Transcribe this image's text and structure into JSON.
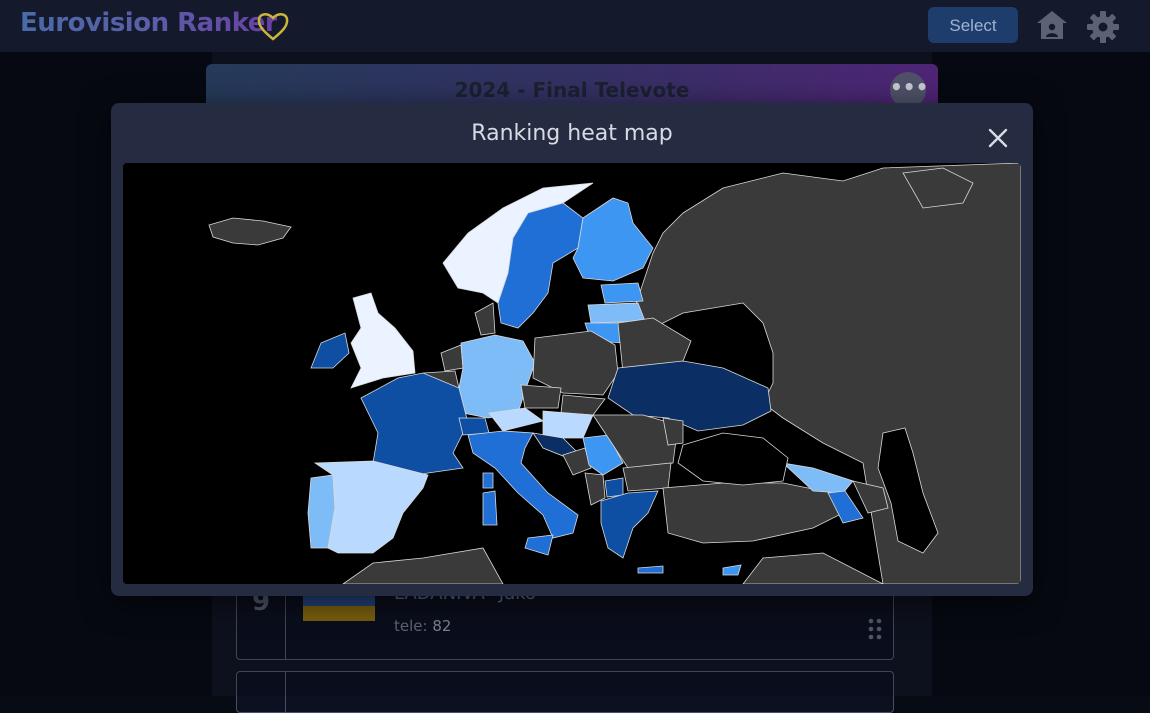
{
  "header": {
    "app_title": "Eurovision Ranker",
    "select_label": "Select",
    "icons": [
      "heart-icon",
      "home-icon",
      "gear-icon"
    ]
  },
  "ranking_list": {
    "title": "2024 - Final Televote",
    "menu_label": "•••",
    "rows": [
      {
        "rank": "9",
        "artist": "LADANIVA",
        "song": "\"Jako\"",
        "tele_label": "tele:",
        "tele_value": "82"
      }
    ]
  },
  "modal": {
    "title": "Ranking heat map",
    "close_label": "×"
  },
  "colors": {
    "no_data": "#3a3a3a",
    "rank_lightest": "#eaf3ff",
    "rank_light": "#b9dafe",
    "rank_mid_light": "#7dbcf7",
    "rank_mid": "#3d96f2",
    "rank_strong": "#1f6fd6",
    "rank_dark": "#0e4fa3",
    "rank_darkest": "#0b2f64",
    "flag_blue": "#264a87",
    "flag_yellow": "#8a6a12"
  }
}
